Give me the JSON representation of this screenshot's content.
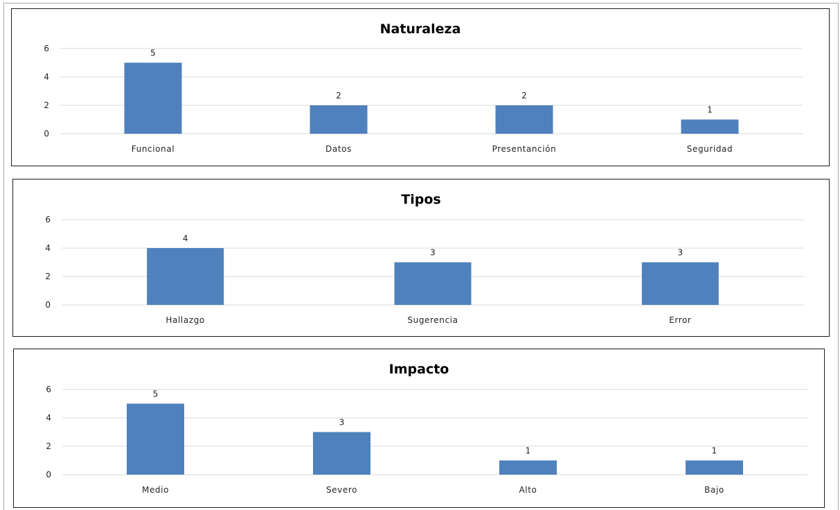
{
  "chart_data": [
    {
      "type": "bar",
      "title": "Naturaleza",
      "categories": [
        "Funcional",
        "Datos",
        "Presentanción",
        "Seguridad"
      ],
      "values": [
        5,
        2,
        2,
        1
      ],
      "data_labels": [
        "5",
        "2",
        "2",
        "1"
      ],
      "y_ticks": [
        "0",
        "2",
        "4",
        "6"
      ],
      "ylim": [
        0,
        6
      ],
      "xlabel": "",
      "ylabel": "",
      "grid": true,
      "legend": "none",
      "bar_color": "#4f81bd"
    },
    {
      "type": "bar",
      "title": "Tipos",
      "categories": [
        "Hallazgo",
        "Sugerencia",
        "Error"
      ],
      "values": [
        4,
        3,
        3
      ],
      "data_labels": [
        "4",
        "3",
        "3"
      ],
      "y_ticks": [
        "0",
        "2",
        "4",
        "6"
      ],
      "ylim": [
        0,
        6
      ],
      "xlabel": "",
      "ylabel": "",
      "grid": true,
      "legend": "none",
      "bar_color": "#4f81bd"
    },
    {
      "type": "bar",
      "title": "Impacto",
      "categories": [
        "Medio",
        "Severo",
        "Alto",
        "Bajo"
      ],
      "values": [
        5,
        3,
        1,
        1
      ],
      "data_labels": [
        "5",
        "3",
        "1",
        "1"
      ],
      "y_ticks": [
        "0",
        "2",
        "4",
        "6"
      ],
      "ylim": [
        0,
        6
      ],
      "xlabel": "",
      "ylabel": "",
      "grid": true,
      "legend": "none",
      "bar_color": "#4f81bd"
    }
  ],
  "colors": {
    "gridline": "#d9d9d9",
    "panel_border": "#1a1a1a"
  }
}
